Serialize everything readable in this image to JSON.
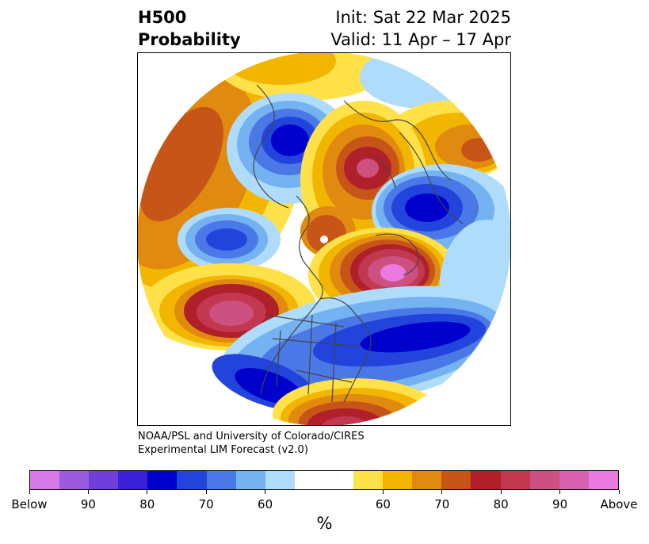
{
  "header": {
    "title_line1": "H500",
    "title_line2": "Probability",
    "init_text": "Init: Sat 22 Mar 2025",
    "valid_text": "Valid: 11 Apr – 17 Apr"
  },
  "credit": {
    "line1": "NOAA/PSL and University of Colorado/CIRES",
    "line2": "Experimental LIM Forecast (v2.0)"
  },
  "colorbar": {
    "unit_label": "%",
    "colors": [
      "#d678e6",
      "#9b5be0",
      "#6e3fd9",
      "#3a1fd6",
      "#0000cc",
      "#2244dd",
      "#4a78e6",
      "#74b2f2",
      "#aedcfa",
      "#ffffff",
      "#ffffff",
      "#ffe14a",
      "#f2b600",
      "#e08a10",
      "#c85518",
      "#b0202a",
      "#c23850",
      "#cc5080",
      "#da60b0",
      "#ea7ae0"
    ],
    "tick_labels": [
      "Below",
      "90",
      "80",
      "70",
      "60",
      "60",
      "70",
      "80",
      "90",
      "Above"
    ]
  },
  "map": {
    "projection": "north-polar-stereographic",
    "coastline_color": "#444444",
    "palette": {
      "below_90": "#0000cc",
      "below_80": "#2244dd",
      "below_70": "#4a78e6",
      "below_60": "#74b2f2",
      "below_50": "#aedcfa",
      "above_50": "#ffe14a",
      "above_60": "#f2b600",
      "above_70": "#e08a10",
      "above_80": "#c85518",
      "above_85": "#b0202a",
      "above_90": "#c23850",
      "above_95": "#cc5080",
      "above_max": "#ea7ae0"
    }
  }
}
